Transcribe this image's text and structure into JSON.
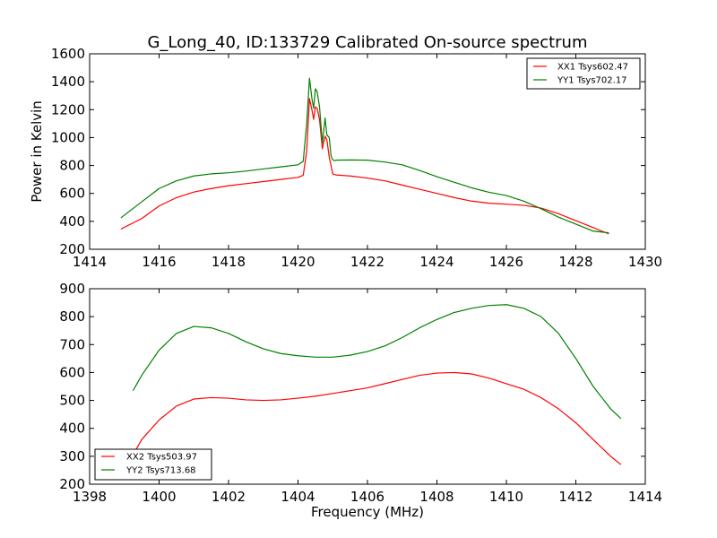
{
  "chart_data": [
    {
      "type": "line",
      "title": "G_Long_40, ID:133729 Calibrated On-source spectrum",
      "xlabel": "",
      "ylabel": "Power in Kelvin",
      "xlim": [
        1414,
        1430
      ],
      "ylim": [
        200,
        1600
      ],
      "xticks": [
        "1414",
        "1416",
        "1418",
        "1420",
        "1422",
        "1424",
        "1426",
        "1428",
        "1430"
      ],
      "yticks": [
        "200",
        "400",
        "600",
        "800",
        "1000",
        "1200",
        "1400",
        "1600"
      ],
      "legend_position": "top-right",
      "series": [
        {
          "name": "XX1 Tsys602.47",
          "color": "#ff0000",
          "x": [
            1414.9,
            1415.5,
            1416.0,
            1416.5,
            1417.0,
            1417.5,
            1418.0,
            1418.5,
            1419.0,
            1419.5,
            1420.0,
            1420.15,
            1420.25,
            1420.33,
            1420.4,
            1420.45,
            1420.5,
            1420.55,
            1420.62,
            1420.7,
            1420.78,
            1420.83,
            1420.9,
            1420.95,
            1421.0,
            1421.05,
            1421.1,
            1421.5,
            1422.0,
            1422.5,
            1423.0,
            1423.5,
            1424.0,
            1424.5,
            1425.0,
            1425.5,
            1426.0,
            1426.5,
            1427.0,
            1427.5,
            1428.0,
            1428.5,
            1428.95
          ],
          "y": [
            345,
            420,
            510,
            570,
            610,
            635,
            655,
            670,
            685,
            700,
            715,
            730,
            900,
            1280,
            1200,
            1130,
            1220,
            1210,
            1130,
            920,
            1010,
            985,
            860,
            800,
            740,
            735,
            732,
            725,
            710,
            690,
            660,
            630,
            600,
            570,
            545,
            530,
            523,
            515,
            495,
            455,
            405,
            355,
            310
          ]
        },
        {
          "name": "YY1 Tsys702.17",
          "color": "#008000",
          "x": [
            1414.9,
            1415.5,
            1416.0,
            1416.5,
            1417.0,
            1417.5,
            1418.0,
            1418.5,
            1419.0,
            1419.5,
            1420.0,
            1420.15,
            1420.25,
            1420.33,
            1420.4,
            1420.45,
            1420.5,
            1420.55,
            1420.62,
            1420.7,
            1420.78,
            1420.83,
            1420.9,
            1420.95,
            1421.0,
            1421.05,
            1421.1,
            1421.5,
            1422.0,
            1422.5,
            1423.0,
            1423.5,
            1424.0,
            1424.5,
            1425.0,
            1425.5,
            1426.0,
            1426.5,
            1427.0,
            1427.5,
            1428.0,
            1428.5,
            1428.95
          ],
          "y": [
            425,
            540,
            635,
            690,
            725,
            740,
            748,
            760,
            775,
            790,
            805,
            830,
            1100,
            1425,
            1280,
            1210,
            1350,
            1330,
            1220,
            960,
            1140,
            1020,
            1000,
            870,
            840,
            835,
            838,
            840,
            838,
            825,
            805,
            765,
            720,
            680,
            640,
            608,
            585,
            545,
            490,
            430,
            380,
            330,
            318
          ]
        }
      ]
    },
    {
      "type": "line",
      "title": "",
      "xlabel": "Frequency (MHz)",
      "ylabel": "",
      "xlim": [
        1398,
        1414
      ],
      "ylim": [
        200,
        900
      ],
      "xticks": [
        "1398",
        "1400",
        "1402",
        "1404",
        "1406",
        "1408",
        "1410",
        "1412",
        "1414"
      ],
      "yticks": [
        "200",
        "300",
        "400",
        "500",
        "600",
        "700",
        "800",
        "900"
      ],
      "legend_position": "bottom-left",
      "series": [
        {
          "name": "XX2 Tsys503.97",
          "color": "#ff0000",
          "x": [
            1399.25,
            1399.5,
            1400.0,
            1400.5,
            1401.0,
            1401.5,
            1402.0,
            1402.5,
            1403.0,
            1403.5,
            1404.0,
            1404.5,
            1405.0,
            1405.5,
            1406.0,
            1406.5,
            1407.0,
            1407.5,
            1408.0,
            1408.5,
            1409.0,
            1409.5,
            1410.0,
            1410.5,
            1411.0,
            1411.5,
            1412.0,
            1412.5,
            1413.0,
            1413.3
          ],
          "y": [
            305,
            360,
            430,
            480,
            505,
            510,
            508,
            502,
            500,
            502,
            508,
            515,
            525,
            535,
            545,
            560,
            575,
            590,
            598,
            600,
            595,
            580,
            560,
            540,
            510,
            470,
            420,
            360,
            300,
            270
          ]
        },
        {
          "name": "YY2 Tsys713.68",
          "color": "#008000",
          "x": [
            1399.25,
            1399.5,
            1400.0,
            1400.5,
            1401.0,
            1401.5,
            1402.0,
            1402.5,
            1403.0,
            1403.5,
            1404.0,
            1404.5,
            1405.0,
            1405.5,
            1406.0,
            1406.5,
            1407.0,
            1407.5,
            1408.0,
            1408.5,
            1409.0,
            1409.5,
            1410.0,
            1410.5,
            1411.0,
            1411.5,
            1412.0,
            1412.5,
            1413.0,
            1413.3
          ],
          "y": [
            535,
            590,
            680,
            740,
            765,
            760,
            740,
            710,
            685,
            668,
            660,
            655,
            655,
            662,
            675,
            695,
            725,
            760,
            790,
            815,
            830,
            840,
            843,
            830,
            800,
            740,
            650,
            550,
            470,
            435
          ]
        }
      ]
    }
  ]
}
